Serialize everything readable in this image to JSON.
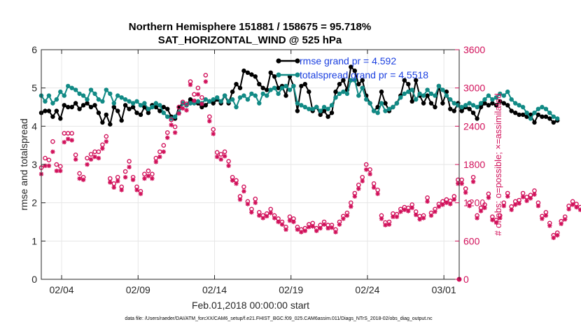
{
  "colors": {
    "rmse": "#000000",
    "totalspread": "#118a85",
    "obs": "#d1105a",
    "legend_text": "#1a3fe0"
  },
  "chart_data": {
    "type": "line",
    "title": "Northern Hemisphere 151881 / 158675 = 95.718%",
    "subtitle": "SAT_HORIZONTAL_WIND @ 525 hPa",
    "xlabel": "Feb.01,2018 00:00:00 start",
    "ylabel": "rmse and totalspread",
    "y2label": "# of obs: o=possible; ×=assimilated",
    "footer": "data file: /Users/raeder/DAI/ATM_forcXX/CAM6_setup/f.e21.FHIST_BGC.f09_025.CAM6assim.011/Diags_NTrS_2018-02/obs_diag_output.nc",
    "xlim": [
      1.67,
      29.0
    ],
    "ylim": [
      0,
      6
    ],
    "y2lim": [
      0,
      3600
    ],
    "x_ticks": [
      3,
      8,
      13,
      18,
      23,
      28
    ],
    "x_tick_labels": [
      "02/04",
      "02/09",
      "02/14",
      "02/19",
      "02/24",
      "03/01"
    ],
    "y_ticks": [
      "0",
      "1",
      "2",
      "3",
      "4",
      "5",
      "6"
    ],
    "y2_ticks": [
      "0",
      "600",
      "1200",
      "1800",
      "2400",
      "3000",
      "3600"
    ],
    "grid": true,
    "legend_position": "top-right",
    "legend": [
      "rmse grand pr = 4.592",
      "totalspread grand pr = 4.5518"
    ],
    "x_start": 1.67,
    "x_step": 0.25,
    "series": [
      {
        "name": "rmse grand pr = 4.592",
        "axis": "left",
        "marker": "filled-circle",
        "values": [
          4.35,
          4.4,
          4.4,
          4.25,
          4.4,
          4.2,
          4.55,
          4.5,
          4.5,
          4.6,
          4.45,
          4.55,
          4.6,
          4.5,
          4.55,
          4.35,
          4.1,
          4.3,
          4.05,
          4.5,
          4.4,
          4.15,
          4.55,
          4.45,
          4.5,
          4.35,
          4.3,
          4.5,
          4.35,
          4.55,
          4.5,
          4.4,
          4.5,
          4.45,
          4.25,
          4.2,
          4.5,
          4.6,
          4.55,
          4.7,
          4.65,
          4.6,
          4.5,
          4.55,
          4.65,
          4.6,
          4.7,
          4.6,
          4.8,
          4.6,
          4.9,
          5.1,
          5.0,
          5.45,
          5.4,
          5.35,
          5.3,
          5.1,
          5.0,
          4.95,
          5.4,
          5.3,
          5.0,
          5.05,
          4.8,
          5.3,
          5.05,
          4.4,
          5.05,
          5.1,
          4.9,
          4.4,
          4.5,
          4.3,
          4.4,
          4.25,
          4.35,
          4.9,
          5.1,
          5.2,
          4.95,
          5.55,
          5.45,
          5.1,
          5.2,
          4.8,
          4.6,
          4.4,
          4.5,
          4.9,
          4.6,
          4.4,
          4.5,
          4.6,
          4.8,
          5.2,
          5.1,
          4.65,
          5.2,
          4.8,
          4.6,
          4.8,
          4.6,
          4.5,
          5.05,
          4.6,
          4.9,
          4.45,
          4.4,
          4.6,
          4.4,
          4.5,
          4.45,
          4.35,
          4.2,
          4.5,
          4.6,
          4.55,
          4.6,
          4.55,
          4.65,
          4.6,
          4.55,
          4.4,
          4.35,
          4.3,
          4.3,
          4.25,
          4.3,
          4.1,
          4.3,
          4.25,
          4.25,
          4.2,
          4.1,
          4.15
        ],
        "label_note": "line with markers"
      },
      {
        "name": "totalspread grand pr = 4.5518",
        "axis": "left",
        "marker": "filled-circle",
        "values": [
          4.8,
          4.65,
          4.8,
          4.6,
          4.7,
          4.9,
          4.8,
          5.05,
          5.0,
          4.95,
          4.85,
          4.8,
          4.7,
          4.95,
          4.85,
          4.7,
          4.65,
          4.95,
          4.85,
          4.6,
          4.8,
          4.75,
          4.7,
          4.65,
          4.6,
          4.65,
          4.55,
          4.6,
          4.45,
          4.5,
          4.6,
          4.55,
          4.35,
          4.25,
          4.2,
          4.25,
          4.35,
          4.6,
          4.55,
          4.6,
          4.6,
          4.65,
          4.6,
          4.7,
          4.65,
          4.7,
          4.75,
          4.65,
          4.8,
          4.65,
          4.7,
          4.5,
          4.75,
          4.8,
          4.7,
          4.85,
          4.8,
          4.6,
          4.85,
          4.8,
          4.95,
          5.0,
          4.85,
          5.0,
          5.05,
          4.95,
          5.05,
          4.6,
          4.55,
          4.5,
          4.45,
          4.45,
          4.5,
          4.4,
          4.5,
          4.45,
          4.55,
          4.75,
          4.85,
          4.9,
          4.85,
          5.2,
          5.2,
          4.8,
          5.0,
          4.7,
          4.6,
          4.4,
          4.35,
          4.6,
          4.4,
          4.45,
          4.5,
          4.6,
          4.75,
          4.85,
          4.9,
          4.95,
          4.7,
          4.85,
          4.8,
          4.95,
          4.85,
          4.8,
          5.05,
          4.95,
          4.8,
          4.7,
          4.6,
          4.55,
          4.5,
          4.55,
          4.6,
          4.55,
          4.5,
          4.6,
          4.7,
          4.8,
          4.7,
          4.75,
          4.85,
          4.8,
          4.9,
          4.7,
          4.6,
          4.55,
          4.5,
          4.35,
          4.2,
          4.35,
          4.45,
          4.5,
          4.45,
          4.35,
          4.25,
          4.2
        ],
        "label_note": "line with markers"
      },
      {
        "name": "# of obs possible",
        "axis": "right",
        "marker": "open-circle",
        "values": [
          1750,
          1900,
          1870,
          2160,
          1800,
          1770,
          2290,
          2290,
          2290,
          1950,
          1660,
          1600,
          1900,
          1960,
          2000,
          2000,
          2110,
          2240,
          1580,
          1500,
          1600,
          1450,
          1690,
          1850,
          1600,
          1450,
          1380,
          1650,
          1700,
          1650,
          1900,
          2000,
          2100,
          2300,
          2500,
          2390,
          2700,
          2780,
          2750,
          3100,
          2900,
          3000,
          2850,
          3200,
          2550,
          2350,
          1990,
          1960,
          2000,
          1850,
          1600,
          1550,
          1300,
          1450,
          1220,
          1100,
          1260,
          1050,
          1000,
          1030,
          1100,
          1000,
          950,
          900,
          820,
          980,
          950,
          820,
          780,
          800,
          860,
          880,
          800,
          850,
          900,
          850,
          850,
          780,
          900,
          990,
          1040,
          1200,
          1350,
          1480,
          1600,
          1800,
          1720,
          1500,
          1400,
          1000,
          890,
          900,
          1030,
          1020,
          1100,
          1130,
          1120,
          1170,
          1060,
          990,
          1000,
          1280,
          1040,
          1100,
          1180,
          1220,
          1250,
          1230,
          1300,
          1560,
          1560,
          1420,
          1200,
          1600,
          1000,
          1120,
          1170,
          1340,
          980,
          930,
          1000,
          1200,
          1350,
          1140,
          1220,
          1240,
          1350,
          1290,
          1320,
          1390,
          1200,
          990,
          1050,
          880,
          690,
          730,
          910,
          980,
          1150,
          1220,
          1180,
          1130
        ],
        "label_note": "markers only"
      },
      {
        "name": "# of obs assimilated",
        "axis": "right",
        "marker": "asterisk",
        "values": [
          1650,
          1780,
          1780,
          2000,
          1700,
          1700,
          2150,
          2200,
          2180,
          1880,
          1580,
          1560,
          1800,
          1880,
          1920,
          1900,
          2050,
          2160,
          1520,
          1440,
          1540,
          1400,
          1600,
          1760,
          1560,
          1400,
          1340,
          1580,
          1620,
          1580,
          1840,
          1920,
          2000,
          2220,
          2420,
          2300,
          2600,
          2680,
          2650,
          3050,
          2800,
          2900,
          2750,
          3100,
          2480,
          2280,
          1920,
          1880,
          1930,
          1780,
          1550,
          1500,
          1250,
          1380,
          1180,
          1050,
          1200,
          1000,
          960,
          990,
          1040,
          960,
          900,
          860,
          780,
          920,
          900,
          780,
          740,
          760,
          820,
          830,
          760,
          800,
          860,
          800,
          810,
          740,
          860,
          950,
          1000,
          1140,
          1300,
          1420,
          1540,
          1720,
          1650,
          1440,
          1340,
          950,
          850,
          860,
          980,
          980,
          1060,
          1090,
          1070,
          1120,
          1010,
          940,
          960,
          1220,
          1000,
          1060,
          1140,
          1170,
          1200,
          1180,
          1250,
          1500,
          1500,
          1360,
          1150,
          1530,
          960,
          1070,
          1120,
          1280,
          930,
          890,
          960,
          1150,
          1300,
          1090,
          1170,
          1190,
          1290,
          1230,
          1270,
          1330,
          1150,
          950,
          1000,
          840,
          650,
          690,
          870,
          940,
          1100,
          1170,
          1130,
          1090
        ],
        "label_note": "markers only"
      }
    ]
  }
}
